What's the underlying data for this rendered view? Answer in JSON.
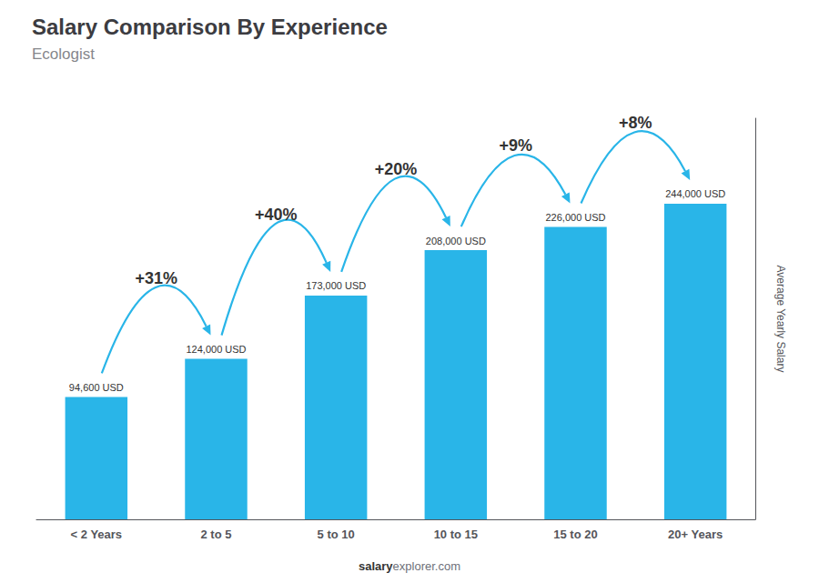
{
  "chart_data": {
    "type": "bar",
    "title": "Salary Comparison By Experience",
    "subtitle": "Ecologist",
    "ylabel": "Average Yearly Salary",
    "categories": [
      "< 2 Years",
      "2 to 5",
      "5 to 10",
      "10 to 15",
      "15 to 20",
      "20+ Years"
    ],
    "values": [
      94600,
      124000,
      173000,
      208000,
      226000,
      244000
    ],
    "value_labels": [
      "94,600 USD",
      "124,000 USD",
      "173,000 USD",
      "208,000 USD",
      "226,000 USD",
      "244,000 USD"
    ],
    "data_labels": true,
    "annotations": [
      "+31%",
      "+40%",
      "+20%",
      "+9%",
      "+8%"
    ],
    "watermark": [
      "salary",
      "explorer.com"
    ],
    "color": "#29b5e8",
    "ylim": [
      0,
      310000
    ],
    "tick_labels": "x",
    "grid": false
  }
}
